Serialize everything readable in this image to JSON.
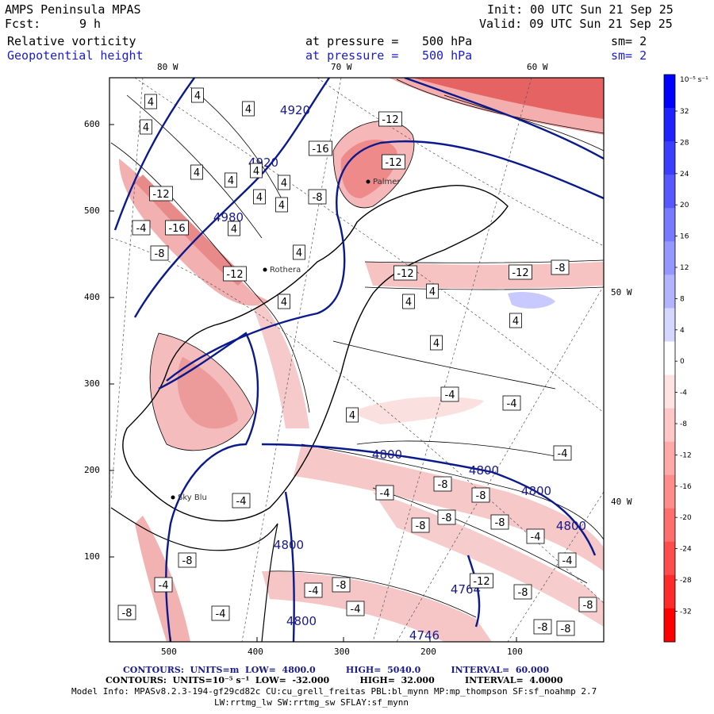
{
  "header": {
    "title": "AMPS Peninsula MPAS",
    "fcst_label": "Fcst:",
    "fcst_value": "9 h",
    "init": "Init: 00 UTC Sun 21 Sep 25",
    "valid": "Valid: 09 UTC Sun 21 Sep 25",
    "field1": {
      "name": "Relative vorticity",
      "pressure_label": "at pressure =",
      "pressure": "500 hPa",
      "sm": "sm= 2"
    },
    "field2": {
      "name": "Geopotential height",
      "pressure_label": "at pressure =",
      "pressure": "500 hPa",
      "sm": "sm= 2"
    }
  },
  "axes": {
    "top_lon": [
      "80 W",
      "70 W",
      "60 W"
    ],
    "right_lon": [
      "50 W",
      "40 W"
    ],
    "y_ticks": [
      "600",
      "500",
      "400",
      "300",
      "200",
      "100"
    ],
    "x_ticks": [
      "500",
      "400",
      "300",
      "200",
      "100"
    ]
  },
  "colorbar": {
    "unit": "10⁻⁵ s⁻¹",
    "ticks": [
      "32",
      "28",
      "24",
      "20",
      "16",
      "12",
      "8",
      "4",
      "0",
      "-4",
      "-8",
      "-12",
      "-16",
      "-20",
      "-24",
      "-28",
      "-32"
    ],
    "colors": [
      "#0000ff",
      "#1f22ff",
      "#3b3eff",
      "#5759ff",
      "#7779ff",
      "#9597ff",
      "#b3b4ff",
      "#d6d7ff",
      "#ffffff",
      "#ffe3e3",
      "#ffc7c7",
      "#ffa9a9",
      "#ff8b8b",
      "#ff6d6d",
      "#ff4c4c",
      "#ff2a2a",
      "#ff0000"
    ]
  },
  "contour_labels": {
    "height": [
      "4920",
      "4920",
      "4980",
      "4800",
      "4800",
      "4800",
      "4800",
      "4800",
      "4800",
      "4764",
      "4746"
    ],
    "vorticity": [
      "4",
      "4",
      "4",
      "4",
      "4",
      "4",
      "4",
      "4",
      "4",
      "4",
      "4",
      "4",
      "4",
      "4",
      "4",
      "4",
      "4",
      "4",
      "-12",
      "-16",
      "-12",
      "-12",
      "-16",
      "-8",
      "-4",
      "-4",
      "-12",
      "-12",
      "-12",
      "-8",
      "-8",
      "-4",
      "-4",
      "-4",
      "-4",
      "-8",
      "-8",
      "-8",
      "-8",
      "-4",
      "-8",
      "-4",
      "-12",
      "-8",
      "-8",
      "-8",
      "-8",
      "-8",
      "-8",
      "-4",
      "-4",
      "-4",
      "-4",
      "-8"
    ]
  },
  "place_labels": [
    "Palmer",
    "Rothera",
    "Sky Blu"
  ],
  "footer": {
    "line1": "CONTOURS:  UNITS=m  LOW=  4800.0          HIGH=  5040.0          INTERVAL=  60.000",
    "line2": "CONTOURS:  UNITS=10⁻⁵ s⁻¹  LOW=  -32.000          HIGH=  32.000          INTERVAL=  4.0000",
    "line3": "Model Info: MPASv8.2.3-194-gf29cd82c CU:cu_grell_freitas PBL:bl_mynn MP:mp_thompson SF:sf_noahmp 2.7",
    "line4": "LW:rrtmg_lw SW:rrtmg_sw SFLAY:sf_mynn"
  },
  "colors": {
    "height_contour": "#0a1a8c",
    "label_blue": "#1a1ad0"
  }
}
